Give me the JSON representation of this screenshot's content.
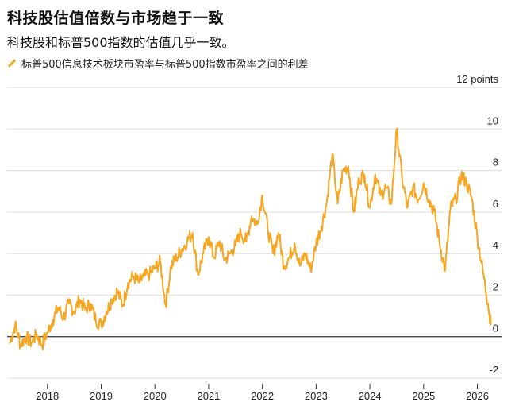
{
  "title": "科技股估值倍数与市场趋于一致",
  "subtitle": "科技股和标普500指数的估值几乎一致。",
  "legend_label": "标普500信息技术板块市盈率与标普500指数市盈率之间的利差",
  "colors": {
    "series": "#f5a623",
    "grid": "#dcdcdc",
    "zero_line": "#333333"
  },
  "chart_data": {
    "type": "line",
    "title": "科技股估值倍数与市场趋于一致",
    "subtitle": "科技股和标普500指数的估值几乎一致。",
    "ylim": [
      -2,
      12
    ],
    "yticks": [
      -2,
      0,
      2,
      4,
      6,
      8,
      10,
      12
    ],
    "ytick_labels": [
      "-2",
      "0",
      "2",
      "4",
      "6",
      "8",
      "10",
      "12 points"
    ],
    "xlim": [
      2017.25,
      2026.45
    ],
    "xticks": [
      2018,
      2019,
      2020,
      2021,
      2022,
      2023,
      2024,
      2025,
      2026
    ],
    "xtick_labels": [
      "2018",
      "2019",
      "2020",
      "2021",
      "2022",
      "2023",
      "2024",
      "2025",
      "2026"
    ],
    "grid": "horizontal",
    "series": [
      {
        "name": "标普500信息技术板块市盈率与标普500指数市盈率之间的利差",
        "x": [
          2017.3,
          2017.4,
          2017.5,
          2017.6,
          2017.7,
          2017.8,
          2017.9,
          2018.0,
          2018.1,
          2018.2,
          2018.3,
          2018.4,
          2018.5,
          2018.6,
          2018.7,
          2018.8,
          2018.9,
          2019.0,
          2019.1,
          2019.2,
          2019.3,
          2019.4,
          2019.5,
          2019.6,
          2019.7,
          2019.8,
          2019.9,
          2020.0,
          2020.1,
          2020.2,
          2020.3,
          2020.4,
          2020.5,
          2020.6,
          2020.7,
          2020.8,
          2020.9,
          2021.0,
          2021.1,
          2021.2,
          2021.3,
          2021.4,
          2021.5,
          2021.6,
          2021.7,
          2021.8,
          2021.9,
          2022.0,
          2022.1,
          2022.2,
          2022.3,
          2022.4,
          2022.5,
          2022.6,
          2022.7,
          2022.8,
          2022.9,
          2023.0,
          2023.1,
          2023.2,
          2023.3,
          2023.4,
          2023.5,
          2023.6,
          2023.7,
          2023.8,
          2023.9,
          2024.0,
          2024.1,
          2024.2,
          2024.3,
          2024.4,
          2024.5,
          2024.6,
          2024.7,
          2024.8,
          2024.9,
          2025.0,
          2025.1,
          2025.2,
          2025.3,
          2025.4,
          2025.5,
          2025.6,
          2025.7,
          2025.8,
          2025.9,
          2026.0,
          2026.1,
          2026.2,
          2026.25
        ],
        "values": [
          -0.3,
          0.6,
          -0.4,
          0.0,
          -0.3,
          0.1,
          -0.4,
          0.2,
          0.8,
          1.4,
          0.9,
          1.6,
          1.2,
          1.8,
          1.3,
          1.6,
          0.8,
          0.6,
          1.2,
          1.8,
          2.2,
          1.5,
          2.6,
          2.9,
          2.6,
          2.9,
          3.0,
          3.3,
          3.6,
          1.5,
          3.4,
          3.8,
          4.2,
          4.6,
          5.0,
          3.0,
          4.0,
          4.8,
          3.8,
          4.6,
          3.7,
          4.0,
          4.4,
          5.0,
          4.6,
          5.8,
          5.4,
          6.8,
          5.2,
          4.0,
          5.0,
          3.4,
          3.8,
          4.5,
          3.4,
          4.0,
          3.2,
          4.5,
          5.3,
          6.5,
          8.8,
          6.4,
          8.0,
          8.2,
          6.0,
          7.6,
          7.8,
          6.2,
          7.8,
          6.8,
          7.2,
          6.4,
          10.0,
          7.6,
          6.2,
          7.2,
          6.6,
          7.4,
          6.6,
          6.0,
          4.5,
          3.2,
          6.2,
          6.6,
          7.8,
          7.4,
          6.6,
          4.8,
          3.2,
          1.6,
          0.6
        ]
      }
    ]
  }
}
